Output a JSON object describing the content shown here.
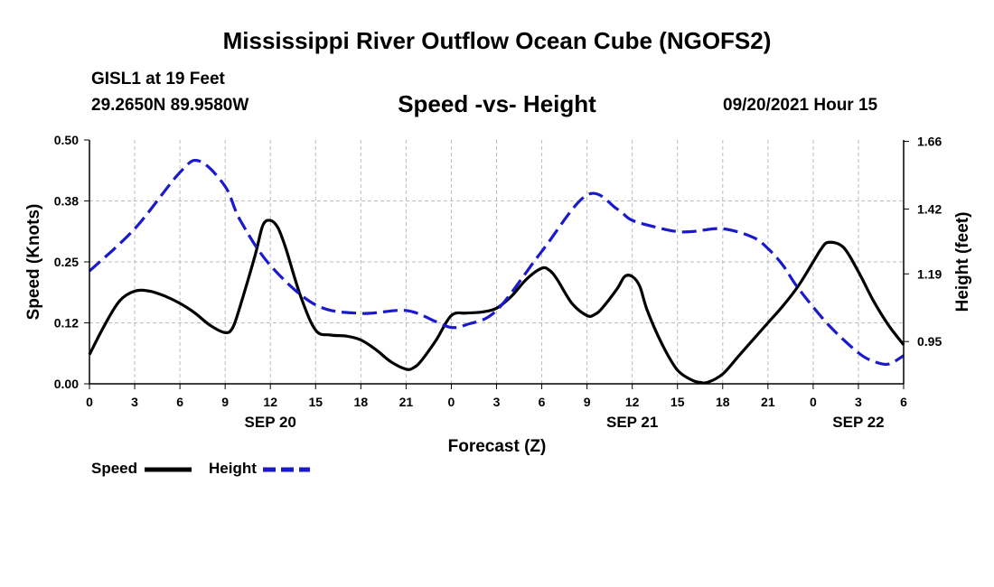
{
  "header": {
    "title": "Mississippi River Outflow Ocean Cube (NGOFS2)",
    "station": "GISL1 at 19 Feet",
    "coords": "29.2650N  89.9580W",
    "chart_title": "Speed -vs- Height",
    "forecast_time": "09/20/2021 Hour 15"
  },
  "footer": {
    "title": "Mississippi River Outflow Ocean Cube (NGOFS2)"
  },
  "colors": {
    "speed": "#000000",
    "height": "#1a1acc",
    "grid": "#bbbbbb"
  },
  "legend": [
    {
      "label": "Speed",
      "color": "#000000",
      "dash": "solid"
    },
    {
      "label": "Height",
      "color": "#1a1acc",
      "dash": "dashed"
    }
  ],
  "chart_data": {
    "type": "line",
    "title": "Speed -vs- Height",
    "xlabel": "Forecast (Z)",
    "ylabel_left": "Speed (Knots)",
    "ylabel_right": "Height (feet)",
    "xlim": [
      0,
      54
    ],
    "ylim_left": [
      0,
      0.5
    ],
    "ylim_right": [
      0.8,
      1.665
    ],
    "x_ticks": [
      {
        "x": 0,
        "label": "0"
      },
      {
        "x": 3,
        "label": "3"
      },
      {
        "x": 6,
        "label": "6"
      },
      {
        "x": 9,
        "label": "9"
      },
      {
        "x": 12,
        "label": "12"
      },
      {
        "x": 15,
        "label": "15"
      },
      {
        "x": 18,
        "label": "18"
      },
      {
        "x": 21,
        "label": "21"
      },
      {
        "x": 24,
        "label": "0"
      },
      {
        "x": 27,
        "label": "3"
      },
      {
        "x": 30,
        "label": "6"
      },
      {
        "x": 33,
        "label": "9"
      },
      {
        "x": 36,
        "label": "12"
      },
      {
        "x": 39,
        "label": "15"
      },
      {
        "x": 42,
        "label": "18"
      },
      {
        "x": 45,
        "label": "21"
      },
      {
        "x": 48,
        "label": "0"
      },
      {
        "x": 51,
        "label": "3"
      },
      {
        "x": 54,
        "label": "6"
      }
    ],
    "date_labels": [
      {
        "x": 12,
        "label": "SEP 20"
      },
      {
        "x": 36,
        "label": "SEP 21"
      },
      {
        "x": 51,
        "label": "SEP 22"
      }
    ],
    "y_ticks_left": [
      {
        "v": 0.0,
        "label": "0.00"
      },
      {
        "v": 0.125,
        "label": "0.12"
      },
      {
        "v": 0.25,
        "label": "0.25"
      },
      {
        "v": 0.375,
        "label": "0.38"
      },
      {
        "v": 0.5,
        "label": "0.50"
      }
    ],
    "y_ticks_right": [
      {
        "v": 0.95,
        "label": "0.95"
      },
      {
        "v": 1.19,
        "label": "1.19"
      },
      {
        "v": 1.42,
        "label": "1.42"
      },
      {
        "v": 1.66,
        "label": "1.66"
      }
    ],
    "series": [
      {
        "name": "Speed",
        "axis": "left",
        "x": [
          0,
          1,
          2,
          3,
          4,
          5,
          6,
          7,
          8,
          9,
          9.5,
          10,
          11,
          11.5,
          12,
          12.5,
          13,
          14,
          15,
          16,
          17,
          18,
          19,
          20,
          21,
          21.5,
          22,
          23,
          24,
          25,
          26,
          27,
          28,
          29,
          30,
          30.5,
          31,
          32,
          33,
          33.5,
          34,
          35,
          35.5,
          36,
          36.5,
          37,
          38,
          39,
          40,
          40.5,
          41,
          42,
          43,
          44,
          45,
          46,
          47,
          48,
          48.5,
          49,
          50,
          51,
          52,
          53,
          54
        ],
        "values": [
          0.06,
          0.12,
          0.17,
          0.19,
          0.19,
          0.18,
          0.165,
          0.145,
          0.12,
          0.105,
          0.115,
          0.16,
          0.265,
          0.325,
          0.335,
          0.32,
          0.28,
          0.18,
          0.11,
          0.1,
          0.098,
          0.09,
          0.07,
          0.045,
          0.03,
          0.033,
          0.047,
          0.09,
          0.14,
          0.145,
          0.147,
          0.155,
          0.18,
          0.215,
          0.237,
          0.233,
          0.215,
          0.165,
          0.14,
          0.142,
          0.155,
          0.195,
          0.22,
          0.22,
          0.2,
          0.15,
          0.08,
          0.028,
          0.007,
          0.003,
          0.003,
          0.02,
          0.055,
          0.09,
          0.125,
          0.16,
          0.2,
          0.25,
          0.275,
          0.29,
          0.28,
          0.23,
          0.17,
          0.12,
          0.08
        ]
      },
      {
        "name": "Height",
        "axis": "right",
        "x": [
          0,
          3,
          6,
          7.3,
          9,
          10,
          12,
          15,
          18,
          21,
          23,
          24,
          25,
          27,
          30,
          33,
          35,
          36,
          38,
          39,
          40,
          42,
          44,
          45,
          46,
          47,
          49,
          51,
          52,
          53,
          54
        ],
        "values": [
          1.2,
          1.35,
          1.55,
          1.59,
          1.5,
          1.38,
          1.22,
          1.08,
          1.05,
          1.06,
          1.02,
          1.0,
          1.01,
          1.06,
          1.27,
          1.47,
          1.42,
          1.38,
          1.35,
          1.34,
          1.34,
          1.35,
          1.32,
          1.28,
          1.22,
          1.14,
          1.01,
          0.91,
          0.88,
          0.87,
          0.9
        ]
      }
    ]
  }
}
